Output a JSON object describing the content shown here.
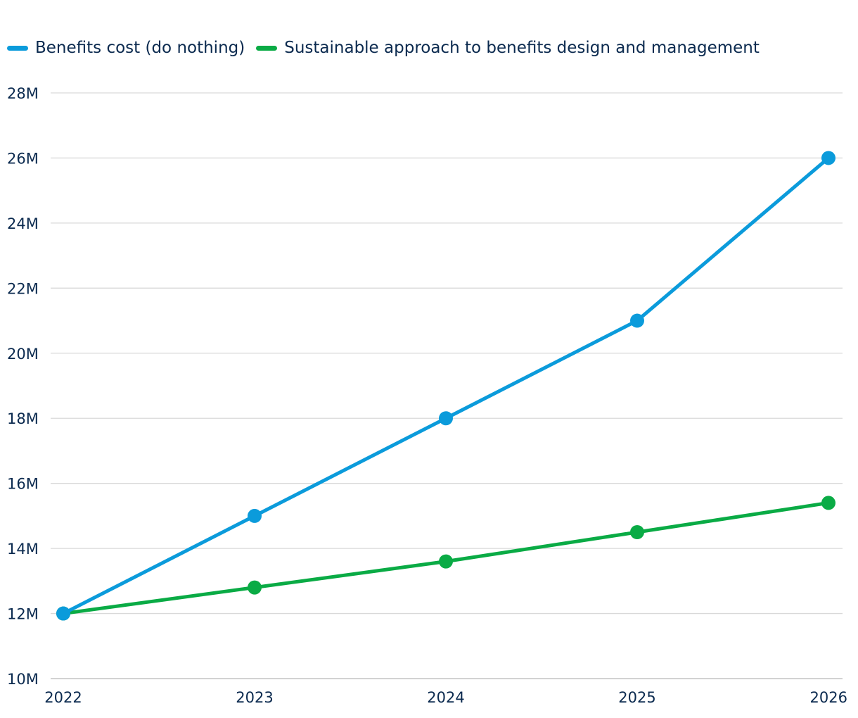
{
  "chart_data": {
    "type": "line",
    "title": "",
    "xlabel": "",
    "ylabel": "",
    "categories": [
      "2022",
      "2023",
      "2024",
      "2025",
      "2026"
    ],
    "ylim": [
      10,
      28
    ],
    "yticks": [
      10,
      12,
      14,
      16,
      18,
      20,
      22,
      24,
      26,
      28
    ],
    "ytick_labels": [
      "10M",
      "12M",
      "14M",
      "16M",
      "18M",
      "20M",
      "22M",
      "24M",
      "26M",
      "28M"
    ],
    "grid": true,
    "legend_position": "top-left",
    "series": [
      {
        "name": "Benefits cost (do nothing)",
        "color": "#0b9bdb",
        "values": [
          12,
          15,
          18,
          21,
          26
        ]
      },
      {
        "name": "Sustainable approach to benefits design and management",
        "color": "#0aab45",
        "values": [
          12,
          12.8,
          13.6,
          14.5,
          15.4
        ]
      }
    ]
  }
}
